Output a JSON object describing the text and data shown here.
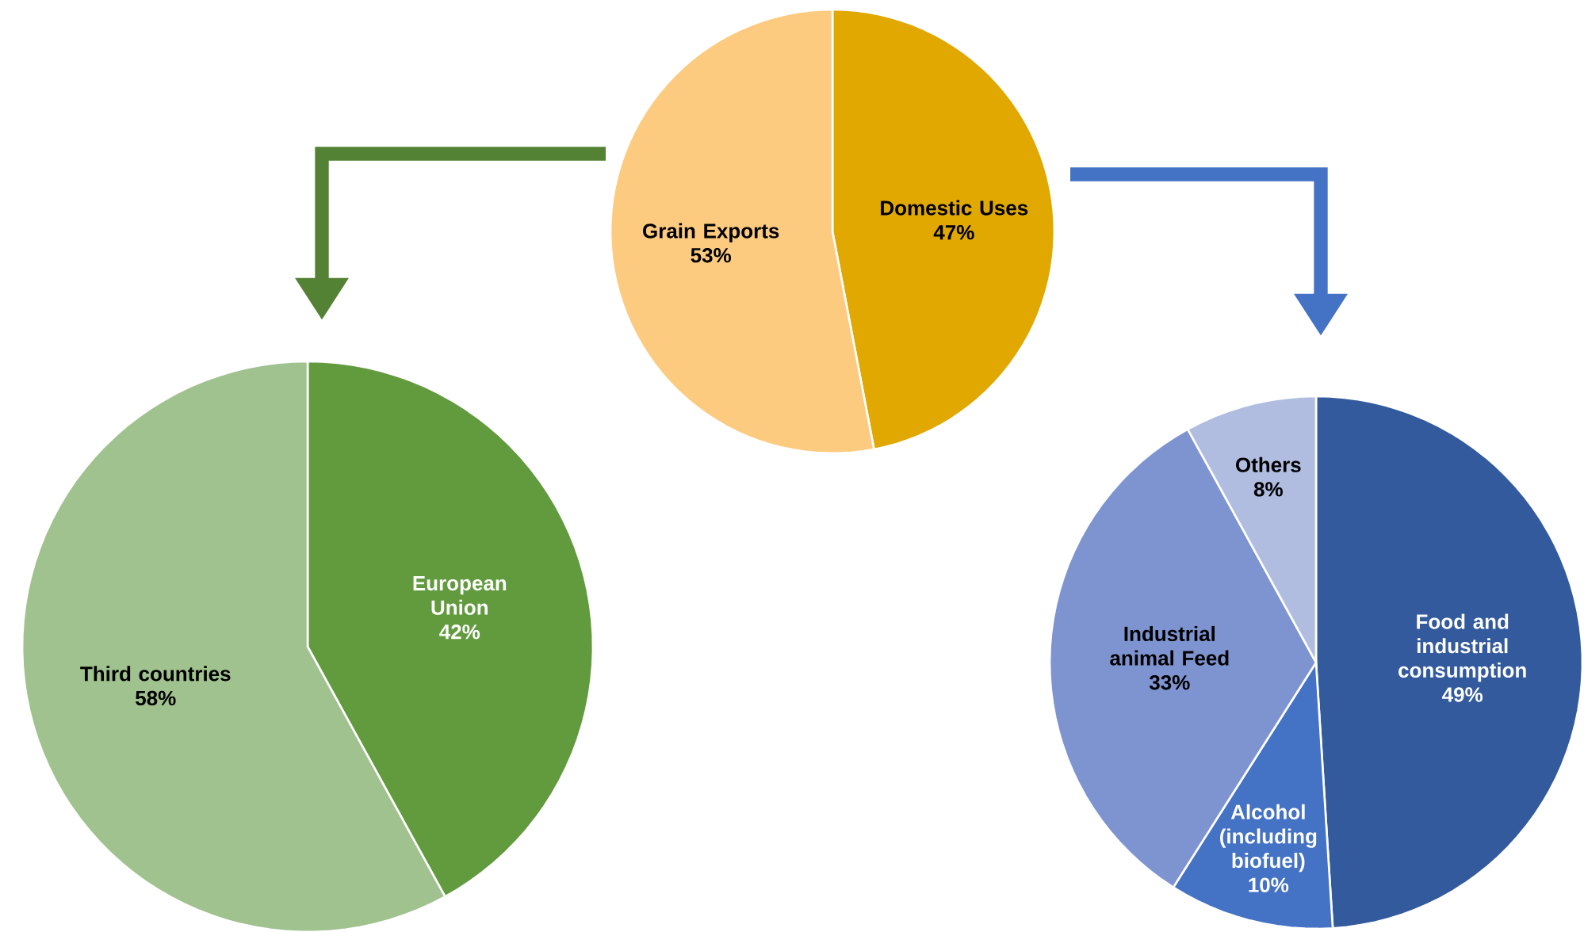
{
  "chart_data": [
    {
      "type": "pie",
      "categories": [
        "Domestic Uses",
        "Grain Exports"
      ],
      "values": [
        47,
        53
      ],
      "colors": [
        "#e0a800",
        "#fdcb80"
      ],
      "value_labels": [
        "47%",
        "53%"
      ]
    },
    {
      "type": "pie",
      "categories": [
        "European Union",
        "Third countries"
      ],
      "values": [
        42,
        58
      ],
      "colors": [
        "#629a3e",
        "#a0c28e"
      ],
      "value_labels": [
        "42%",
        "58%"
      ]
    },
    {
      "type": "pie",
      "categories": [
        "Food and industrial consumption",
        "Alcohol (including biofuel)",
        "Industrial animal Feed",
        "Others"
      ],
      "values": [
        49,
        10,
        33,
        8
      ],
      "colors": [
        "#335a9c",
        "#4472c4",
        "#7e94d0",
        "#b0bde0"
      ],
      "value_labels": [
        "49%",
        "10%",
        "33%",
        "8%"
      ]
    }
  ]
}
